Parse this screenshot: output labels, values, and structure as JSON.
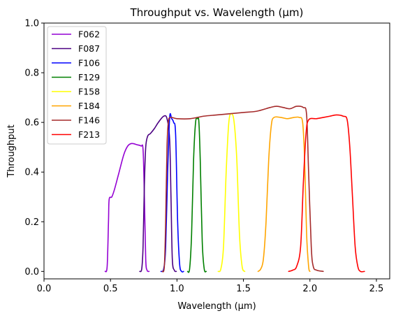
{
  "chart_data": {
    "type": "line",
    "title": "Throughput vs. Wavelength (μm)",
    "xlabel": "Wavelength (μm)",
    "ylabel": "Throughput",
    "xlim": [
      0.0,
      2.6
    ],
    "ylim": [
      -0.03,
      1.0
    ],
    "xticks": [
      0.0,
      0.5,
      1.0,
      1.5,
      2.0,
      2.5
    ],
    "xtick_labels": [
      "0.0",
      "0.5",
      "1.0",
      "1.5",
      "2.0",
      "2.5"
    ],
    "yticks": [
      0.0,
      0.2,
      0.4,
      0.6,
      0.8,
      1.0
    ],
    "ytick_labels": [
      "0.0",
      "0.2",
      "0.4",
      "0.6",
      "0.8",
      "1.0"
    ],
    "grid": false,
    "legend_position": "top-left",
    "series": [
      {
        "name": "F062",
        "color": "#9400d3",
        "points": [
          [
            0.46,
            0.0
          ],
          [
            0.475,
            0.02
          ],
          [
            0.485,
            0.2
          ],
          [
            0.49,
            0.29
          ],
          [
            0.51,
            0.3
          ],
          [
            0.53,
            0.33
          ],
          [
            0.56,
            0.39
          ],
          [
            0.6,
            0.47
          ],
          [
            0.63,
            0.505
          ],
          [
            0.66,
            0.515
          ],
          [
            0.7,
            0.51
          ],
          [
            0.73,
            0.505
          ],
          [
            0.745,
            0.49
          ],
          [
            0.755,
            0.3
          ],
          [
            0.765,
            0.05
          ],
          [
            0.775,
            0.005
          ],
          [
            0.79,
            0.0
          ]
        ]
      },
      {
        "name": "F087",
        "color": "#4b0082",
        "points": [
          [
            0.72,
            0.0
          ],
          [
            0.735,
            0.01
          ],
          [
            0.745,
            0.1
          ],
          [
            0.755,
            0.35
          ],
          [
            0.765,
            0.5
          ],
          [
            0.78,
            0.545
          ],
          [
            0.8,
            0.555
          ],
          [
            0.83,
            0.575
          ],
          [
            0.86,
            0.6
          ],
          [
            0.9,
            0.625
          ],
          [
            0.925,
            0.615
          ],
          [
            0.945,
            0.53
          ],
          [
            0.955,
            0.3
          ],
          [
            0.965,
            0.05
          ],
          [
            0.98,
            0.005
          ],
          [
            0.995,
            0.0
          ]
        ]
      },
      {
        "name": "F106",
        "color": "#0000ff",
        "points": [
          [
            0.88,
            0.0
          ],
          [
            0.9,
            0.01
          ],
          [
            0.915,
            0.1
          ],
          [
            0.93,
            0.4
          ],
          [
            0.945,
            0.62
          ],
          [
            0.96,
            0.615
          ],
          [
            0.975,
            0.6
          ],
          [
            0.99,
            0.55
          ],
          [
            1.005,
            0.2
          ],
          [
            1.02,
            0.03
          ],
          [
            1.035,
            0.0
          ],
          [
            1.05,
            0.0
          ]
        ]
      },
      {
        "name": "F129",
        "color": "#008000",
        "points": [
          [
            1.08,
            0.0
          ],
          [
            1.095,
            0.01
          ],
          [
            1.11,
            0.15
          ],
          [
            1.125,
            0.45
          ],
          [
            1.14,
            0.6
          ],
          [
            1.155,
            0.615
          ],
          [
            1.165,
            0.6
          ],
          [
            1.175,
            0.45
          ],
          [
            1.19,
            0.12
          ],
          [
            1.205,
            0.01
          ],
          [
            1.22,
            0.0
          ]
        ]
      },
      {
        "name": "F158",
        "color": "#ffff00",
        "points": [
          [
            1.31,
            0.0
          ],
          [
            1.33,
            0.01
          ],
          [
            1.35,
            0.1
          ],
          [
            1.37,
            0.4
          ],
          [
            1.39,
            0.6
          ],
          [
            1.41,
            0.635
          ],
          [
            1.43,
            0.6
          ],
          [
            1.45,
            0.45
          ],
          [
            1.47,
            0.15
          ],
          [
            1.49,
            0.02
          ],
          [
            1.51,
            0.0
          ]
        ]
      },
      {
        "name": "F184",
        "color": "#ffa500",
        "points": [
          [
            1.61,
            0.0
          ],
          [
            1.63,
            0.01
          ],
          [
            1.65,
            0.05
          ],
          [
            1.67,
            0.2
          ],
          [
            1.69,
            0.45
          ],
          [
            1.71,
            0.59
          ],
          [
            1.73,
            0.62
          ],
          [
            1.78,
            0.62
          ],
          [
            1.83,
            0.615
          ],
          [
            1.88,
            0.62
          ],
          [
            1.92,
            0.62
          ],
          [
            1.945,
            0.6
          ],
          [
            1.96,
            0.45
          ],
          [
            1.975,
            0.15
          ],
          [
            1.99,
            0.02
          ],
          [
            2.0,
            0.0
          ]
        ]
      },
      {
        "name": "F146",
        "color": "#a52a2a",
        "points": [
          [
            0.89,
            0.0
          ],
          [
            0.905,
            0.02
          ],
          [
            0.915,
            0.2
          ],
          [
            0.925,
            0.5
          ],
          [
            0.935,
            0.6
          ],
          [
            0.95,
            0.62
          ],
          [
            1.0,
            0.615
          ],
          [
            1.1,
            0.615
          ],
          [
            1.2,
            0.625
          ],
          [
            1.3,
            0.63
          ],
          [
            1.4,
            0.635
          ],
          [
            1.5,
            0.64
          ],
          [
            1.6,
            0.645
          ],
          [
            1.7,
            0.66
          ],
          [
            1.75,
            0.665
          ],
          [
            1.8,
            0.66
          ],
          [
            1.85,
            0.655
          ],
          [
            1.9,
            0.665
          ],
          [
            1.95,
            0.66
          ],
          [
            1.975,
            0.63
          ],
          [
            1.99,
            0.4
          ],
          [
            2.01,
            0.1
          ],
          [
            2.025,
            0.02
          ],
          [
            2.05,
            0.005
          ],
          [
            2.1,
            0.0
          ]
        ]
      },
      {
        "name": "F213",
        "color": "#ff0000",
        "points": [
          [
            1.84,
            0.0
          ],
          [
            1.87,
            0.005
          ],
          [
            1.9,
            0.02
          ],
          [
            1.93,
            0.1
          ],
          [
            1.95,
            0.35
          ],
          [
            1.97,
            0.55
          ],
          [
            1.99,
            0.61
          ],
          [
            2.05,
            0.615
          ],
          [
            2.1,
            0.62
          ],
          [
            2.15,
            0.625
          ],
          [
            2.2,
            0.63
          ],
          [
            2.25,
            0.625
          ],
          [
            2.28,
            0.61
          ],
          [
            2.3,
            0.5
          ],
          [
            2.32,
            0.3
          ],
          [
            2.34,
            0.1
          ],
          [
            2.36,
            0.02
          ],
          [
            2.38,
            0.0
          ],
          [
            2.41,
            0.0
          ]
        ]
      }
    ]
  }
}
